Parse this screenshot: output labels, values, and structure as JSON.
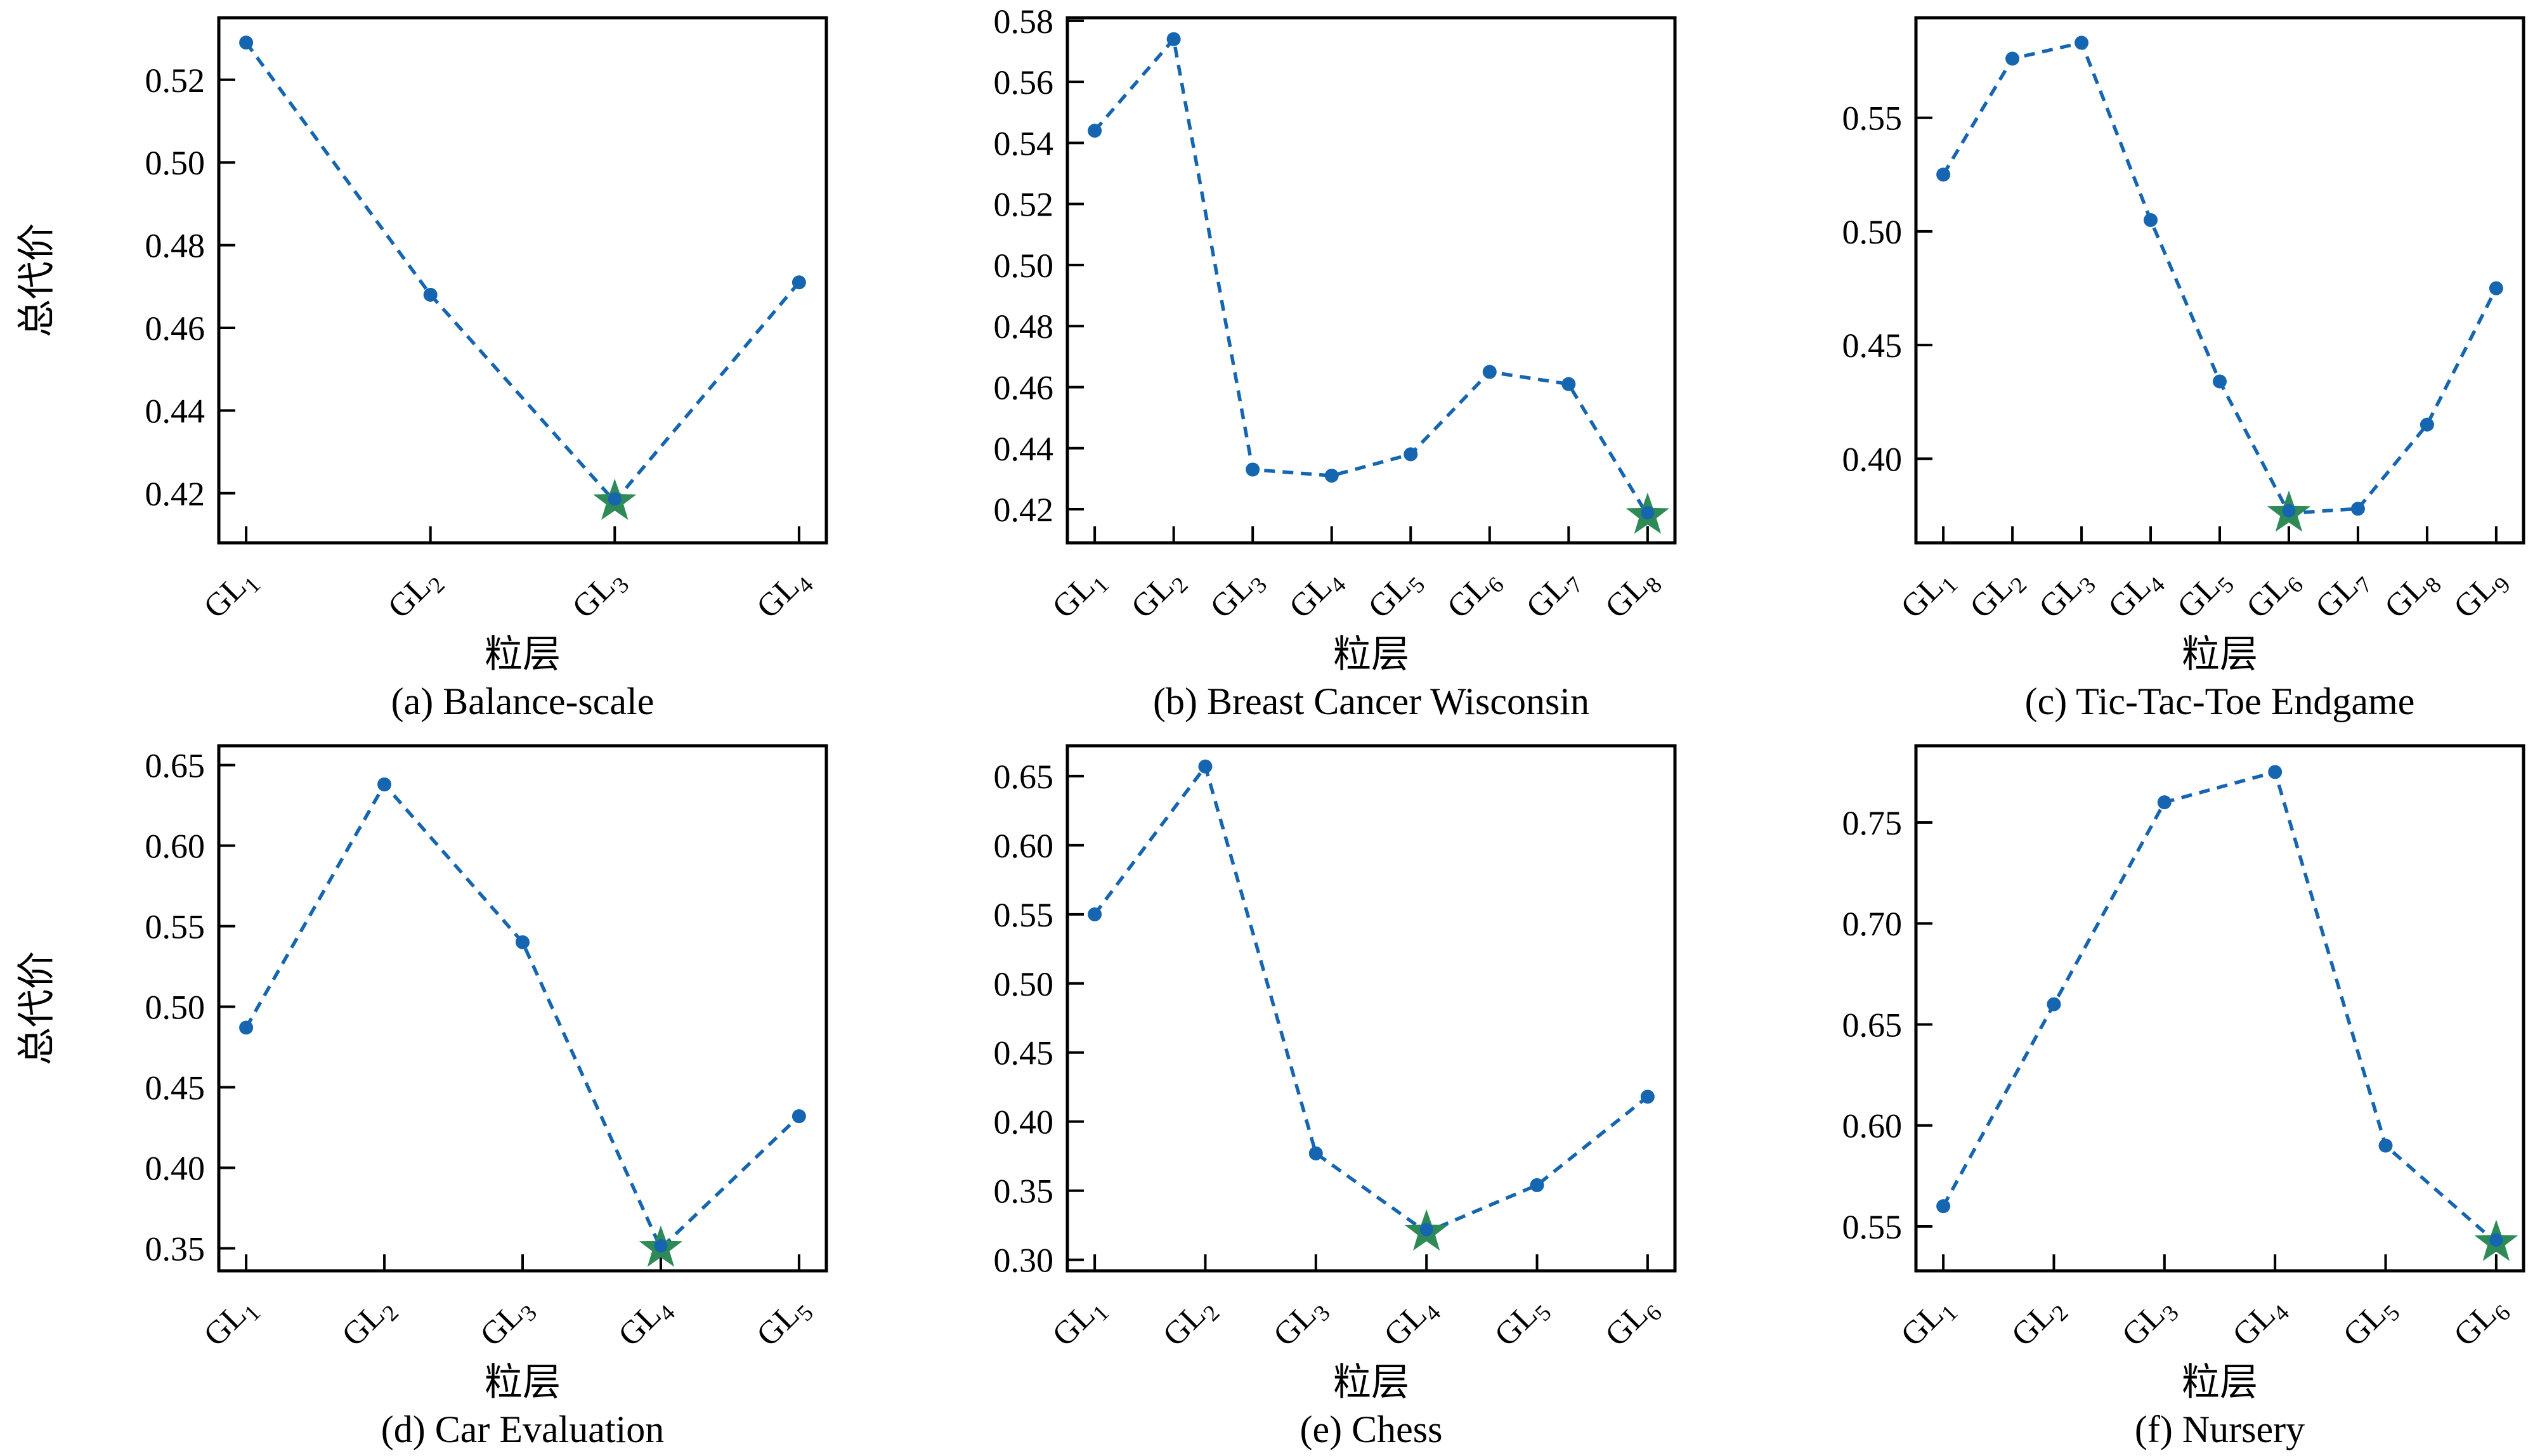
{
  "figure": {
    "line_color": "#1565b0",
    "star_color": "#2e8b57",
    "axis_color": "#000000",
    "line_style": "dashed",
    "marker": "circle",
    "min_marker": "star"
  },
  "chart_data": [
    {
      "id": "a",
      "type": "line",
      "caption": "(a) Balance-scale",
      "xlabel": "粒层",
      "ylabel": "总代价",
      "categories": [
        "GL1",
        "GL2",
        "GL3",
        "GL4"
      ],
      "values": [
        0.529,
        0.468,
        0.418,
        0.471
      ],
      "min_star_index": 2,
      "yticks": [
        0.42,
        0.44,
        0.46,
        0.48,
        0.5,
        0.52
      ],
      "ylim": [
        0.408,
        0.535
      ],
      "grid": false,
      "legend": "none"
    },
    {
      "id": "b",
      "type": "line",
      "caption": "(b) Breast Cancer Wisconsin",
      "xlabel": "粒层",
      "ylabel": "",
      "categories": [
        "GL1",
        "GL2",
        "GL3",
        "GL4",
        "GL5",
        "GL6",
        "GL7",
        "GL8"
      ],
      "values": [
        0.544,
        0.574,
        0.433,
        0.431,
        0.438,
        0.465,
        0.461,
        0.418
      ],
      "min_star_index": 7,
      "yticks": [
        0.42,
        0.44,
        0.46,
        0.48,
        0.5,
        0.52,
        0.54,
        0.56,
        0.58
      ],
      "ylim": [
        0.409,
        0.581
      ],
      "grid": false,
      "legend": "none"
    },
    {
      "id": "c",
      "type": "line",
      "caption": "(c) Tic-Tac-Toe Endgame",
      "xlabel": "粒层",
      "ylabel": "",
      "categories": [
        "GL1",
        "GL2",
        "GL3",
        "GL4",
        "GL5",
        "GL6",
        "GL7",
        "GL8",
        "GL9"
      ],
      "values": [
        0.525,
        0.576,
        0.583,
        0.505,
        0.434,
        0.376,
        0.378,
        0.415,
        0.475
      ],
      "min_star_index": 5,
      "yticks": [
        0.4,
        0.45,
        0.5,
        0.55
      ],
      "ylim": [
        0.363,
        0.594
      ],
      "grid": false,
      "legend": "none"
    },
    {
      "id": "d",
      "type": "line",
      "caption": "(d) Car Evaluation",
      "xlabel": "粒层",
      "ylabel": "总代价",
      "categories": [
        "GL1",
        "GL2",
        "GL3",
        "GL4",
        "GL5"
      ],
      "values": [
        0.487,
        0.638,
        0.54,
        0.35,
        0.432
      ],
      "min_star_index": 3,
      "yticks": [
        0.35,
        0.4,
        0.45,
        0.5,
        0.55,
        0.6,
        0.65
      ],
      "ylim": [
        0.336,
        0.662
      ],
      "grid": false,
      "legend": "none"
    },
    {
      "id": "e",
      "type": "line",
      "caption": "(e) Chess",
      "xlabel": "粒层",
      "ylabel": "",
      "categories": [
        "GL1",
        "GL2",
        "GL3",
        "GL4",
        "GL5",
        "GL6"
      ],
      "values": [
        0.55,
        0.657,
        0.377,
        0.32,
        0.354,
        0.418
      ],
      "min_star_index": 3,
      "yticks": [
        0.3,
        0.35,
        0.4,
        0.45,
        0.5,
        0.55,
        0.6,
        0.65
      ],
      "ylim": [
        0.292,
        0.672
      ],
      "grid": false,
      "legend": "none"
    },
    {
      "id": "f",
      "type": "line",
      "caption": "(f) Nursery",
      "xlabel": "粒层",
      "ylabel": "",
      "categories": [
        "GL1",
        "GL2",
        "GL3",
        "GL4",
        "GL5",
        "GL6"
      ],
      "values": [
        0.56,
        0.66,
        0.76,
        0.775,
        0.59,
        0.542
      ],
      "min_star_index": 5,
      "yticks": [
        0.55,
        0.6,
        0.65,
        0.7,
        0.75
      ],
      "ylim": [
        0.528,
        0.788
      ],
      "grid": false,
      "legend": "none"
    }
  ]
}
